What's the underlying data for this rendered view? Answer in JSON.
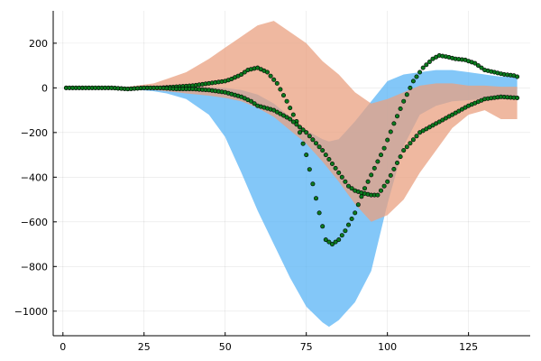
{
  "chart_data": {
    "type": "area",
    "title": "",
    "xlabel": "",
    "ylabel": "",
    "xlim": [
      -3,
      144
    ],
    "ylim": [
      -1110,
      345
    ],
    "xticks": [
      0,
      25,
      50,
      75,
      100,
      125
    ],
    "yticks": [
      200,
      0,
      -200,
      -400,
      -600,
      -800,
      -1000
    ],
    "grid": true,
    "legend": "none",
    "colors": {
      "band_blue": "#5ab4f5",
      "band_orange": "#eaa080",
      "marker_fill": "#0b7a1e",
      "marker_stroke": "#000000",
      "axis": "#000000"
    },
    "bands": [
      {
        "color": "#5ab4f5",
        "x": [
          1,
          10,
          20,
          28,
          32,
          38,
          45,
          50,
          55,
          60,
          65,
          70,
          75,
          80,
          82,
          85,
          90,
          95,
          100,
          105,
          110,
          115,
          120,
          125,
          130,
          135,
          140
        ],
        "upper": [
          0,
          0,
          0,
          10,
          12,
          10,
          5,
          0,
          -10,
          -30,
          -70,
          -130,
          -190,
          -230,
          -240,
          -230,
          -150,
          -60,
          30,
          60,
          70,
          80,
          80,
          70,
          60,
          50,
          50
        ],
        "lower": [
          0,
          0,
          -5,
          -15,
          -25,
          -50,
          -120,
          -220,
          -380,
          -550,
          -700,
          -850,
          -980,
          -1050,
          -1070,
          -1040,
          -960,
          -820,
          -520,
          -260,
          -120,
          -80,
          -60,
          -55,
          -50,
          -50,
          -50
        ]
      },
      {
        "color": "#eaa080",
        "x": [
          1,
          10,
          20,
          28,
          32,
          38,
          45,
          50,
          55,
          60,
          65,
          70,
          75,
          80,
          85,
          90,
          95,
          100,
          105,
          110,
          115,
          120,
          125,
          130,
          135,
          140
        ],
        "upper": [
          0,
          0,
          5,
          20,
          40,
          70,
          130,
          180,
          230,
          280,
          300,
          250,
          200,
          120,
          60,
          -20,
          -70,
          -50,
          -20,
          10,
          20,
          20,
          10,
          10,
          5,
          5
        ],
        "lower": [
          0,
          0,
          -5,
          -10,
          -15,
          -25,
          -35,
          -45,
          -60,
          -90,
          -130,
          -190,
          -250,
          -330,
          -420,
          -520,
          -600,
          -570,
          -500,
          -380,
          -280,
          -180,
          -120,
          -100,
          -140,
          -140
        ]
      }
    ],
    "series": [
      {
        "color": "#0b7a1e",
        "x": [
          1,
          5,
          10,
          15,
          20,
          25,
          30,
          35,
          40,
          45,
          50,
          52,
          55,
          57,
          60,
          63,
          66,
          69,
          72,
          75,
          77,
          79,
          81,
          83,
          85,
          87,
          90,
          93,
          96,
          99,
          102,
          105,
          108,
          111,
          114,
          116,
          118,
          121,
          124,
          127,
          130,
          133,
          136,
          139,
          140
        ],
        "y": [
          0,
          0,
          0,
          0,
          -5,
          0,
          0,
          5,
          10,
          20,
          30,
          40,
          60,
          80,
          90,
          70,
          20,
          -60,
          -150,
          -300,
          -430,
          -560,
          -680,
          -700,
          -680,
          -640,
          -560,
          -450,
          -360,
          -270,
          -160,
          -60,
          30,
          90,
          130,
          145,
          140,
          130,
          125,
          110,
          80,
          70,
          60,
          55,
          50
        ]
      },
      {
        "color": "#0b7a1e",
        "x": [
          1,
          5,
          10,
          15,
          20,
          25,
          30,
          35,
          40,
          45,
          50,
          55,
          58,
          60,
          65,
          70,
          75,
          80,
          85,
          88,
          90,
          92,
          95,
          97,
          100,
          105,
          110,
          115,
          120,
          125,
          130,
          135,
          140
        ],
        "y": [
          0,
          0,
          0,
          0,
          -5,
          0,
          0,
          -5,
          -5,
          -10,
          -20,
          -40,
          -60,
          -80,
          -100,
          -140,
          -200,
          -280,
          -380,
          -440,
          -460,
          -470,
          -480,
          -480,
          -420,
          -280,
          -200,
          -160,
          -120,
          -80,
          -50,
          -40,
          -45
        ]
      }
    ]
  }
}
